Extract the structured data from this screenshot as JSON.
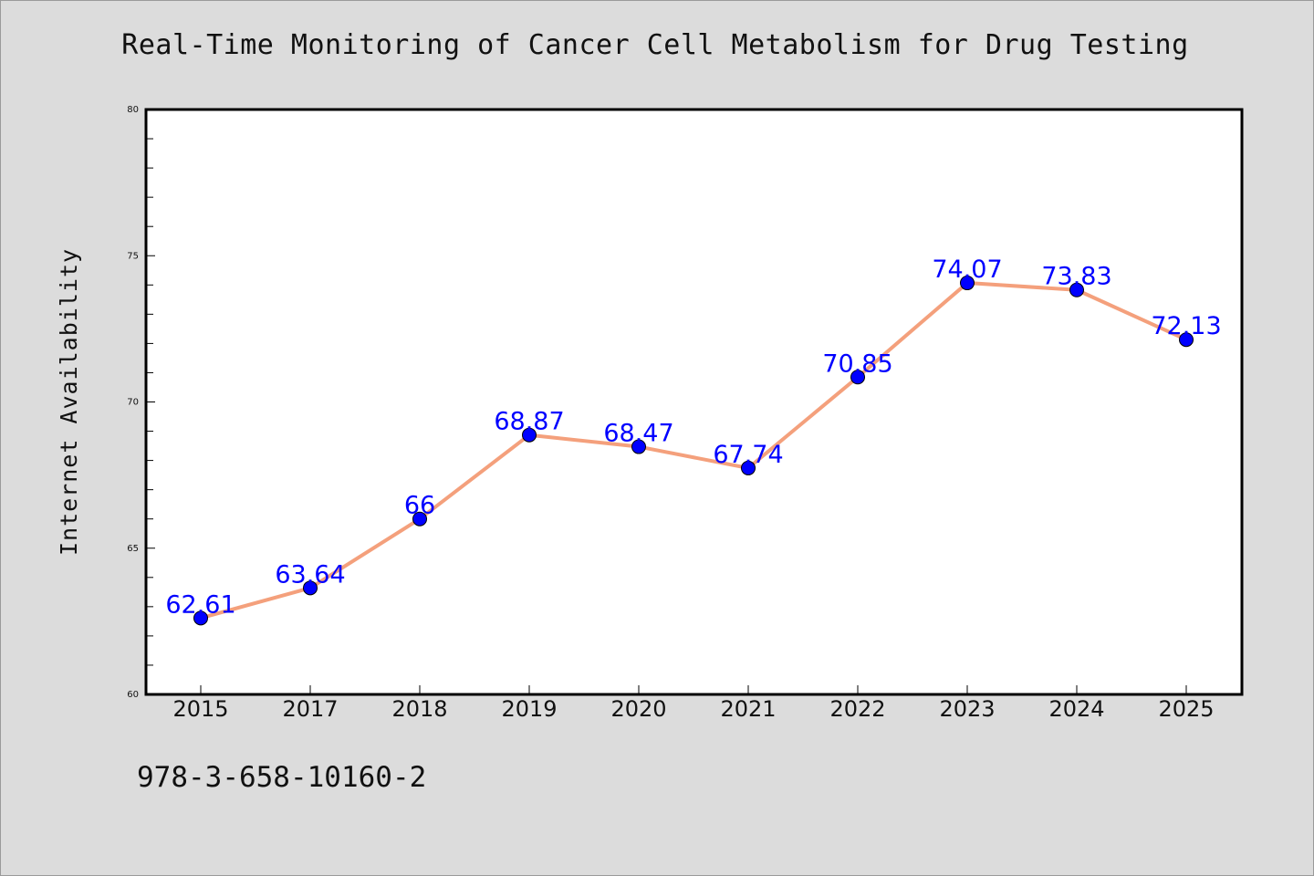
{
  "chart_data": {
    "type": "line",
    "title": "Real-Time Monitoring of Cancer Cell Metabolism for Drug Testing",
    "xlabel": "",
    "ylabel": "Internet Availability",
    "categories": [
      "2015",
      "2017",
      "2018",
      "2019",
      "2020",
      "2021",
      "2022",
      "2023",
      "2024",
      "2025"
    ],
    "values": [
      62.61,
      63.64,
      66,
      68.87,
      68.47,
      67.74,
      70.85,
      74.07,
      73.83,
      72.13
    ],
    "data_labels": [
      "62.61",
      "63.64",
      "66",
      "68.87",
      "68.47",
      "67.74",
      "70.85",
      "74.07",
      "73.83",
      "72.13"
    ],
    "ylim": [
      60,
      80
    ],
    "y_ticks": [
      "60",
      "65",
      "70",
      "75",
      "80"
    ],
    "grid": false,
    "legend": "none",
    "colors": {
      "line": "#f4a07c",
      "marker": "#0000ff",
      "label": "#0000ff",
      "plot_bg": "#ffffff",
      "page_bg": "#dcdcdc"
    }
  },
  "footer": {
    "code": "978-3-658-10160-2"
  }
}
